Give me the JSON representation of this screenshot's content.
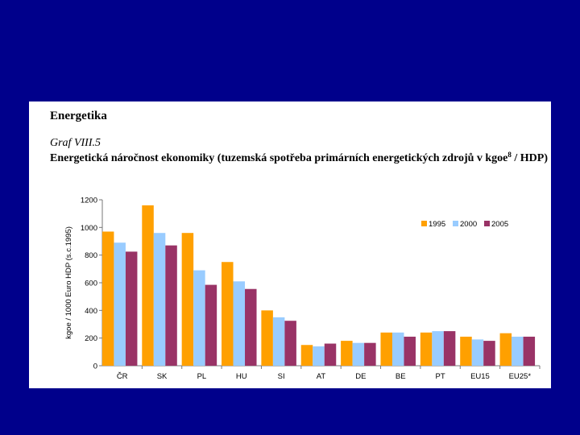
{
  "header": {
    "section": "Energetika",
    "graf": "Graf VIII.5",
    "title_part1": "Energetická náročnost ekonomiky (tuzemská spotřeba primárních energetických zdrojů v kgoe",
    "title_sup": "8",
    "title_part2": " / HDP)"
  },
  "colors": {
    "background": "#00008b",
    "series_1995": "#ffa000",
    "series_2000": "#99ccff",
    "series_2005": "#993366"
  },
  "chart_data": {
    "type": "bar",
    "title": "Energetická náročnost ekonomiky (tuzemská spotřeba primárních energetických zdrojů v kgoe / HDP)",
    "xlabel": "",
    "ylabel": "kgoe / 1000 Euro HDP (s.c.1995)",
    "ylim": [
      0,
      1200
    ],
    "yticks": [
      0,
      200,
      400,
      600,
      800,
      1000,
      1200
    ],
    "categories": [
      "ČR",
      "SK",
      "PL",
      "HU",
      "SI",
      "AT",
      "DE",
      "BE",
      "PT",
      "EU15",
      "EU25*"
    ],
    "series": [
      {
        "name": "1995",
        "color": "#ffa000",
        "values": [
          970,
          1160,
          960,
          750,
          400,
          150,
          180,
          240,
          240,
          210,
          235
        ]
      },
      {
        "name": "2000",
        "color": "#99ccff",
        "values": [
          890,
          960,
          690,
          610,
          350,
          140,
          165,
          240,
          250,
          190,
          210
        ]
      },
      {
        "name": "2005",
        "color": "#993366",
        "values": [
          825,
          870,
          585,
          555,
          325,
          160,
          165,
          210,
          250,
          180,
          210
        ]
      }
    ],
    "legend": "right-upper",
    "grid": false
  }
}
